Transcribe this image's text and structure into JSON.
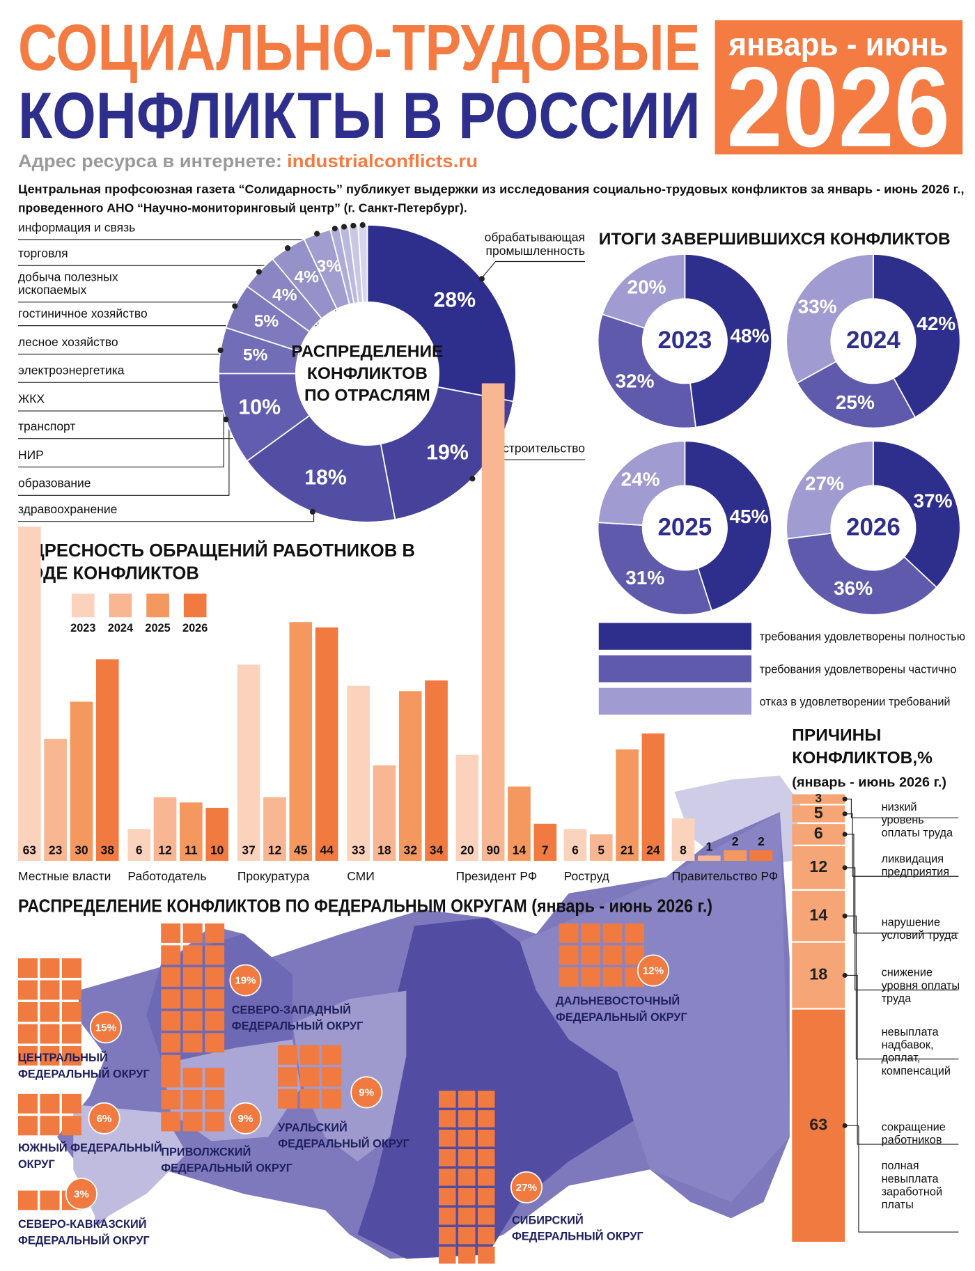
{
  "header": {
    "title_line1": "СОЦИАЛЬНО-ТРУДОВЫЕ",
    "title_line2": "КОНФЛИКТЫ В РОССИИ",
    "period": "январь - июнь",
    "year": "2026",
    "site_label": "Адрес ресурса в интернете:",
    "site_url": "industrialconflicts.ru",
    "intro": [
      "Центральная профсоюзная газета “Солидарность” публикует выдержки из исследования социально-трудовых конфликтов за январь - июнь 2026 г.,",
      "проведенного АНО “Научно-мониторинговый центр” (г. Санкт-Петербург)."
    ]
  },
  "chart_data": [
    {
      "type": "donut",
      "title": [
        "РАСПРЕДЕЛЕНИЕ",
        "КОНФЛИКТОВ",
        "ПО ОТРАСЛЯМ"
      ],
      "categories": [
        "обрабатывающая промышленность",
        "строительство",
        "здравоохранение",
        "образование",
        "НИР",
        "транспорт",
        "ЖКХ",
        "электроэнергетика",
        "лесное хозяйство",
        "гостиничное хозяйство",
        "добыча полезных ископаемых",
        "торговля",
        "информация и связь"
      ],
      "values": [
        28,
        19,
        18,
        10,
        5,
        5,
        4,
        4,
        3,
        1,
        1,
        1,
        1
      ],
      "value_labels": [
        "28%",
        "19%",
        "18%",
        "10%",
        "5%",
        "5%",
        "4%",
        "4%",
        "3%",
        null,
        null,
        null,
        null
      ],
      "colors": [
        "#2e2e8c",
        "#46429c",
        "#524ea4",
        "#625dae",
        "#716db6",
        "#7e7abd",
        "#8a86c3",
        "#9592c9",
        "#a19ecf",
        "#afacd7",
        "#bcb9de",
        "#c9c7e6",
        "#d7d5ed"
      ]
    },
    {
      "type": "donut-group",
      "title": "ИТОГИ ЗАВЕРШИВШИХСЯ КОНФЛИКТОВ",
      "categories": [
        "требования удовлетворены полностью",
        "требования удовлетворены частично",
        "отказ в удовлетворении требований"
      ],
      "colors": [
        "#2e2e8c",
        "#5f5aab",
        "#a09bd0"
      ],
      "series": [
        {
          "name": "2023",
          "values": [
            48,
            32,
            20
          ],
          "value_labels": [
            "48%",
            "32%",
            "20%"
          ]
        },
        {
          "name": "2024",
          "values": [
            42,
            25,
            33
          ],
          "value_labels": [
            "42%",
            "25%",
            "33%"
          ]
        },
        {
          "name": "2025",
          "values": [
            45,
            31,
            24
          ],
          "value_labels": [
            "45%",
            "31%",
            "24%"
          ]
        },
        {
          "name": "2026",
          "values": [
            37,
            36,
            27
          ],
          "value_labels": [
            "37%",
            "36%",
            "27%"
          ]
        }
      ]
    },
    {
      "type": "bar",
      "title": "АДРЕСНОСТЬ ОБРАЩЕНИЙ РАБОТНИКОВ В ХОДЕ КОНФЛИКТОВ",
      "categories": [
        "Местные власти",
        "Работодатель",
        "Прокуратура",
        "СМИ",
        "Президент РФ",
        "Роструд",
        "Правительство РФ"
      ],
      "series": [
        {
          "name": "2023",
          "color": "#fbd3bd",
          "values": [
            63,
            6,
            37,
            33,
            20,
            6,
            8
          ]
        },
        {
          "name": "2024",
          "color": "#f8b692",
          "values": [
            23,
            12,
            12,
            18,
            90,
            5,
            1
          ]
        },
        {
          "name": "2025",
          "color": "#f5985f",
          "values": [
            30,
            11,
            45,
            32,
            14,
            21,
            2
          ]
        },
        {
          "name": "2026",
          "color": "#f07a40",
          "values": [
            38,
            10,
            44,
            34,
            7,
            24,
            2
          ]
        }
      ]
    },
    {
      "type": "stacked-bar",
      "title": "ПРИЧИНЫ КОНФЛИКТОВ,%",
      "subtitle": "(январь - июнь 2026 г.)",
      "categories": [
        "низкий уровень оплаты труда",
        "ликвидация предприятия",
        "нарушение условий труда",
        "снижение уровня оплаты труда",
        "невыплата надбавок, доплат, компенсаций",
        "сокращение работников",
        "полная невыплата заработной платы"
      ],
      "values": [
        3,
        5,
        6,
        12,
        14,
        18,
        63
      ],
      "colors": [
        "#f6a676",
        "#f6a676",
        "#f6a676",
        "#f6a676",
        "#f6a676",
        "#f6a676",
        "#f07a40"
      ]
    },
    {
      "type": "waffle",
      "title": "РАСПРЕДЕЛЕНИЕ КОНФЛИКТОВ ПО ФЕДЕРАЛЬНЫМ ОКРУГАМ (январь - июнь 2026 г.)",
      "categories": [
        "ЦЕНТРАЛЬНЫЙ ФЕДЕРАЛЬНЫЙ ОКРУГ",
        "СЕВЕРО-ЗАПАДНЫЙ ФЕДЕРАЛЬНЫЙ ОКРУГ",
        "ЮЖНЫЙ ФЕДЕРАЛЬНЫЙ ОКРУГ",
        "СЕВЕРО-КАВКАЗСКИЙ ФЕДЕРАЛЬНЫЙ ОКРУГ",
        "ПРИВОЛЖСКИЙ ФЕДЕРАЛЬНЫЙ ОКРУГ",
        "УРАЛЬСКИЙ ФЕДЕРАЛЬНЫЙ ОКРУГ",
        "СИБИРСКИЙ ФЕДЕРАЛЬНЫЙ ОКРУГ",
        "ДАЛЬНЕВОСТОЧНЫЙ ФЕДЕРАЛЬНЫЙ ОКРУГ"
      ],
      "values": [
        15,
        19,
        6,
        3,
        9,
        9,
        27,
        12
      ],
      "value_labels": [
        "15%",
        "19%",
        "6%",
        "3%",
        "9%",
        "9%",
        "27%",
        "12%"
      ],
      "color": "#f07a40"
    }
  ]
}
